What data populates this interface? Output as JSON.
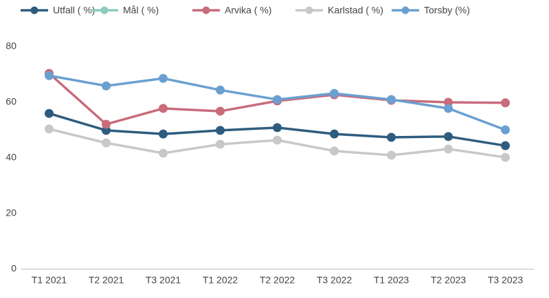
{
  "chart_data": {
    "type": "line",
    "categories": [
      "T1 2021",
      "T2 2021",
      "T3 2021",
      "T1 2022",
      "T2 2022",
      "T3 2022",
      "T1 2023",
      "T2 2023",
      "T3 2023"
    ],
    "series": [
      {
        "name": "Utfall ( %)",
        "color": "#2e5c7e",
        "values": [
          56.0,
          49.9,
          48.6,
          49.9,
          50.9,
          48.6,
          47.4,
          47.7,
          44.4
        ]
      },
      {
        "name": "Mål ( %)",
        "color": "#8ccbbf",
        "values": [
          null,
          null,
          null,
          null,
          null,
          null,
          null,
          null,
          null
        ]
      },
      {
        "name": "Arvika ( %)",
        "color": "#c96b7b",
        "values": [
          70.4,
          52.1,
          57.8,
          56.8,
          60.5,
          62.7,
          60.7,
          60.0,
          59.8
        ]
      },
      {
        "name": "Karlstad ( %)",
        "color": "#c8c8c8",
        "values": [
          50.4,
          45.4,
          41.7,
          44.9,
          46.4,
          42.5,
          41.0,
          43.2,
          40.2
        ]
      },
      {
        "name": "Torsby (%)",
        "color": "#6aa0d0",
        "values": [
          69.6,
          65.9,
          68.6,
          64.4,
          61.0,
          63.2,
          61.0,
          57.8,
          50.1
        ]
      }
    ],
    "ylim": [
      0,
      80
    ],
    "yticks": [
      0,
      20,
      40,
      60,
      80
    ],
    "legend": "top"
  }
}
